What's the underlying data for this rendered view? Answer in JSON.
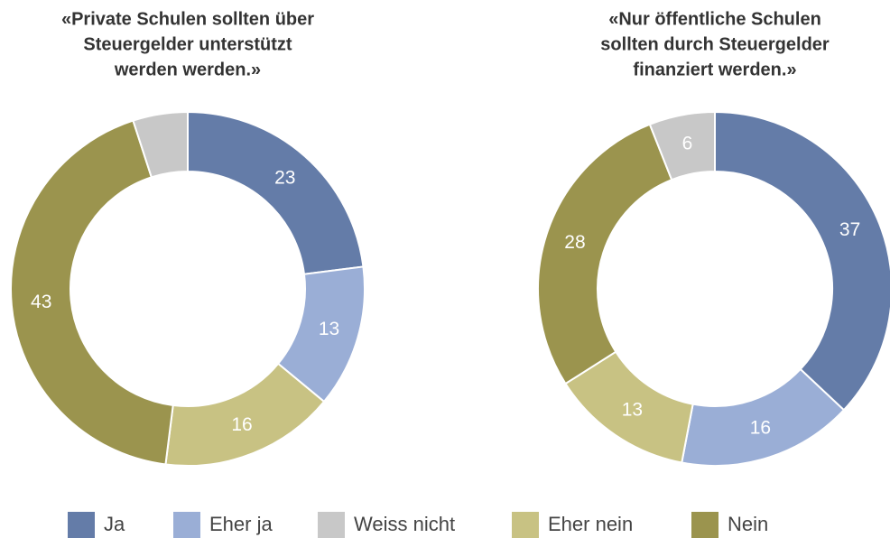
{
  "chart_data": [
    {
      "type": "donut",
      "title": [
        "«Private Schulen sollten über",
        "Steuergelder unterstützt",
        "werden werden.»"
      ],
      "categories": [
        "Ja",
        "Eher ja",
        "Weiss nicht",
        "Eher nein",
        "Nein"
      ],
      "colors": [
        "#647ca8",
        "#9aaed6",
        "#c8c8c8",
        "#c8c283",
        "#9b944e"
      ],
      "values": [
        23,
        13,
        5,
        16,
        43
      ],
      "value_labels": [
        "23",
        "13",
        null,
        "16",
        "43"
      ]
    },
    {
      "type": "donut",
      "title": [
        "«Nur öffentliche Schulen",
        "sollten durch Steuergelder",
        "finanziert werden.»"
      ],
      "categories": [
        "Ja",
        "Eher ja",
        "Weiss nicht",
        "Eher nein",
        "Nein"
      ],
      "colors": [
        "#647ca8",
        "#9aaed6",
        "#c8c8c8",
        "#c8c283",
        "#9b944e"
      ],
      "values": [
        37,
        16,
        6,
        13,
        28
      ],
      "value_labels": [
        "37",
        "16",
        "6",
        "13",
        "28"
      ]
    }
  ]
}
